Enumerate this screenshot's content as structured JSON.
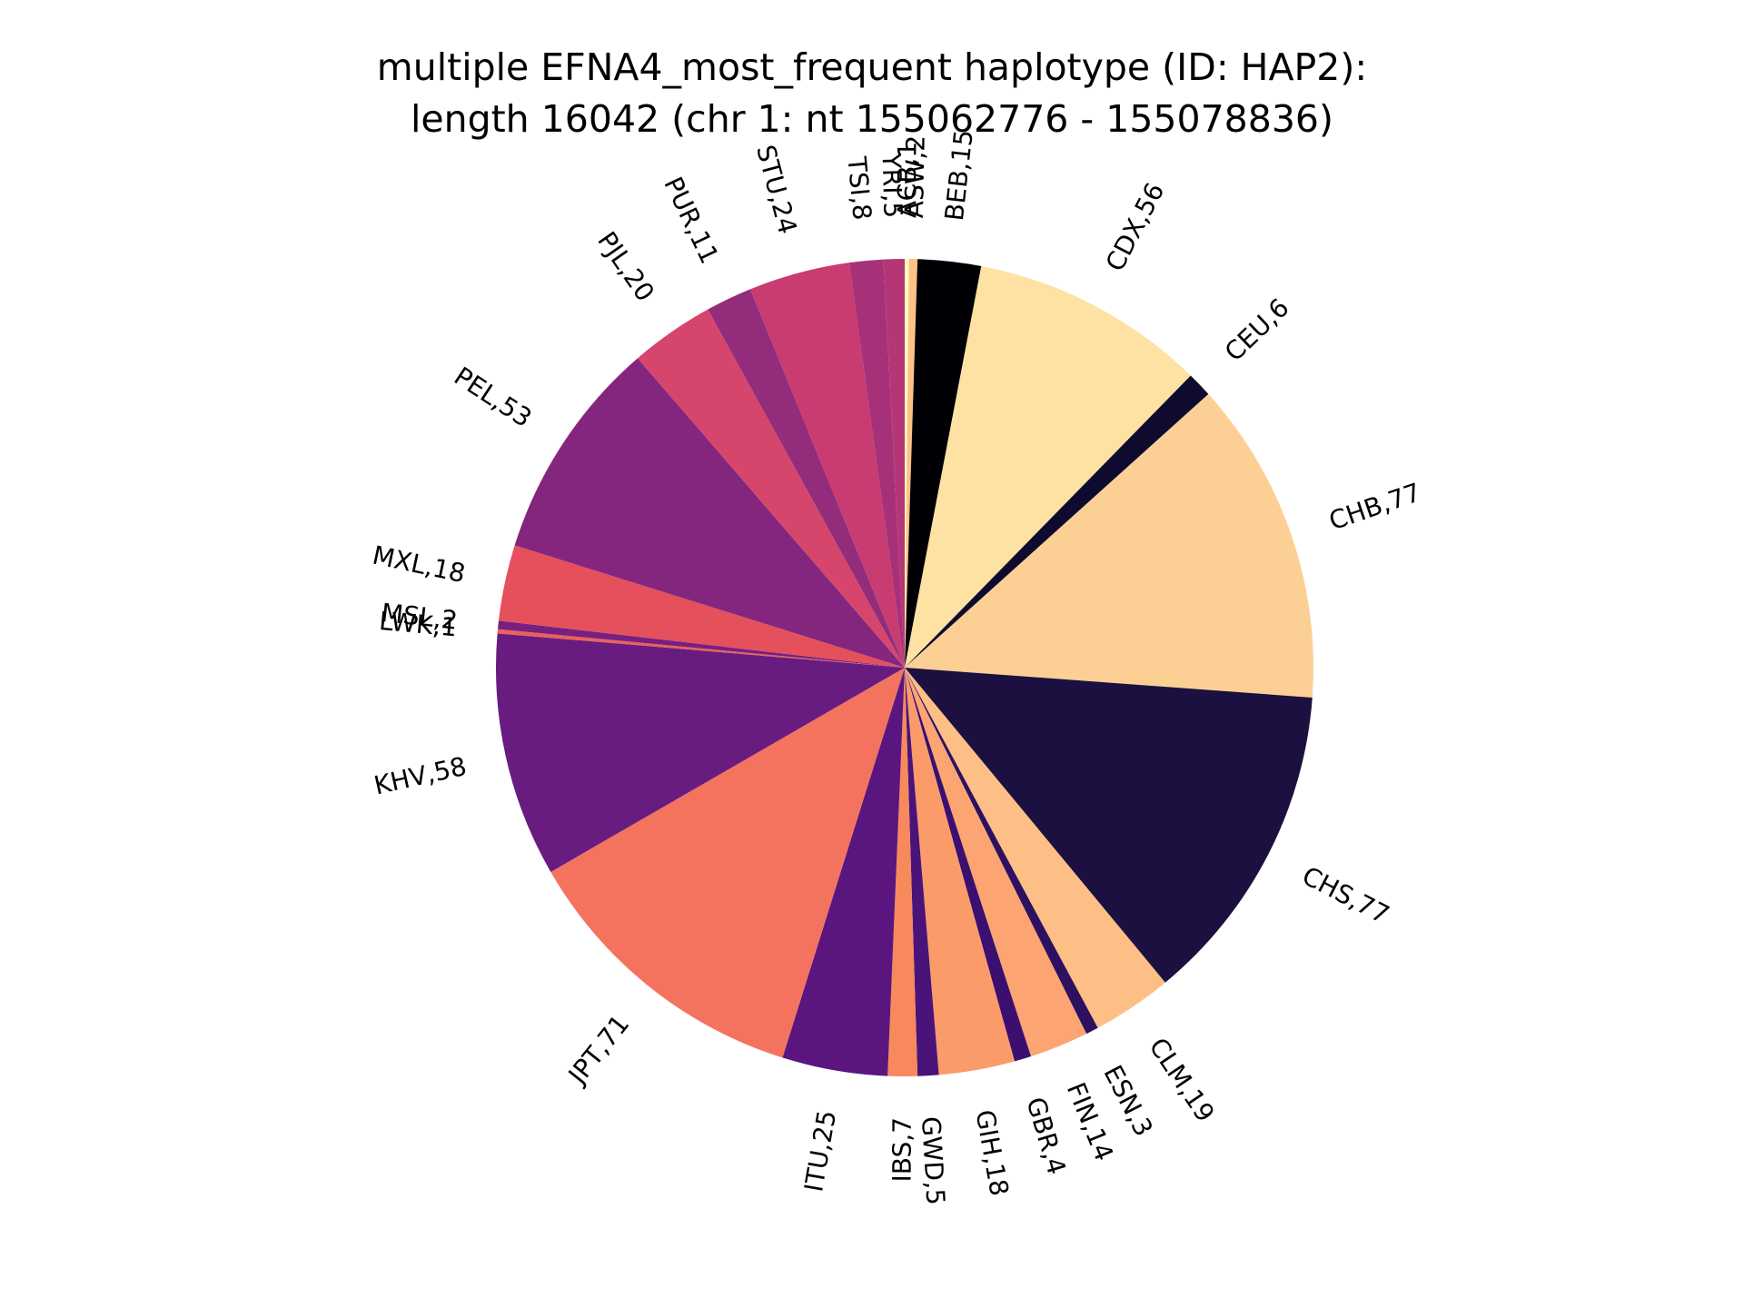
{
  "chart_data": {
    "type": "pie",
    "title_line1": "multiple EFNA4_most_frequent haplotype (ID: HAP2):",
    "title_line2": "length 16042 (chr 1: nt 155062776 - 155078836)",
    "start_angle_deg": 90,
    "direction": "clockwise",
    "label_format": "category,value",
    "slices": [
      {
        "label": "ACB",
        "value": 1,
        "color": "#fcfdbf"
      },
      {
        "label": "ASW",
        "value": 2,
        "color": "#fec287"
      },
      {
        "label": "BEB",
        "value": 15,
        "color": "#000004"
      },
      {
        "label": "CDX",
        "value": 56,
        "color": "#fde2a4"
      },
      {
        "label": "CEU",
        "value": 6,
        "color": "#0e0b2e"
      },
      {
        "label": "CHB",
        "value": 77,
        "color": "#fcd094"
      },
      {
        "label": "CHS",
        "value": 77,
        "color": "#1c1040"
      },
      {
        "label": "CLM",
        "value": 19,
        "color": "#fdbf86"
      },
      {
        "label": "ESN",
        "value": 3,
        "color": "#2d1160"
      },
      {
        "label": "FIN",
        "value": 14,
        "color": "#fca472"
      },
      {
        "label": "GBR",
        "value": 4,
        "color": "#3b0f70"
      },
      {
        "label": "GIH",
        "value": 18,
        "color": "#fb9b6a"
      },
      {
        "label": "GWD",
        "value": 5,
        "color": "#4a1379"
      },
      {
        "label": "IBS",
        "value": 7,
        "color": "#f8895d"
      },
      {
        "label": "ITU",
        "value": 25,
        "color": "#5a167e"
      },
      {
        "label": "JPT",
        "value": 71,
        "color": "#f4735e"
      },
      {
        "label": "KHV",
        "value": 58,
        "color": "#681c80"
      },
      {
        "label": "LWK",
        "value": 1,
        "color": "#ed6059"
      },
      {
        "label": "MSL",
        "value": 2,
        "color": "#77207f"
      },
      {
        "label": "MXL",
        "value": 18,
        "color": "#e5505c"
      },
      {
        "label": "PEL",
        "value": 53,
        "color": "#85267e"
      },
      {
        "label": "PJL",
        "value": 20,
        "color": "#d6456b"
      },
      {
        "label": "PUR",
        "value": 11,
        "color": "#942c7c"
      },
      {
        "label": "STU",
        "value": 24,
        "color": "#c83c71"
      },
      {
        "label": "TSI",
        "value": 8,
        "color": "#a73179"
      },
      {
        "label": "YRI",
        "value": 5,
        "color": "#b53676"
      }
    ]
  }
}
